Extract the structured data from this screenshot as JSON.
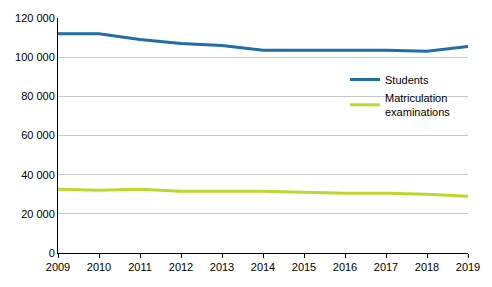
{
  "chart_data": {
    "type": "line",
    "x": [
      2009,
      2010,
      2011,
      2012,
      2013,
      2014,
      2015,
      2016,
      2017,
      2018,
      2019
    ],
    "series": [
      {
        "name": "Students",
        "color": "#1f6ea7",
        "values": [
          112000,
          112000,
          109000,
          107000,
          106000,
          103500,
          103500,
          103500,
          103500,
          103000,
          105500
        ]
      },
      {
        "name": "Matriculation examinations",
        "color": "#bfd630",
        "values": [
          32500,
          32000,
          32500,
          31500,
          31500,
          31500,
          31000,
          30500,
          30500,
          30000,
          29000
        ]
      }
    ],
    "xlim": [
      2009,
      2019
    ],
    "xticks": [
      2009,
      2010,
      2011,
      2012,
      2013,
      2014,
      2015,
      2016,
      2017,
      2018,
      2019
    ],
    "ylim": [
      0,
      120000
    ],
    "yticks": [
      0,
      {
        "value": 20000,
        "label": "20 000"
      },
      {
        "value": 40000,
        "label": "40 000"
      },
      {
        "value": 60000,
        "label": "60 000"
      },
      {
        "value": 80000,
        "label": "80 000"
      },
      {
        "value": 100000,
        "label": "100 000"
      },
      {
        "value": 120000,
        "label": "120 000"
      }
    ],
    "grid": true,
    "legend": "right"
  }
}
